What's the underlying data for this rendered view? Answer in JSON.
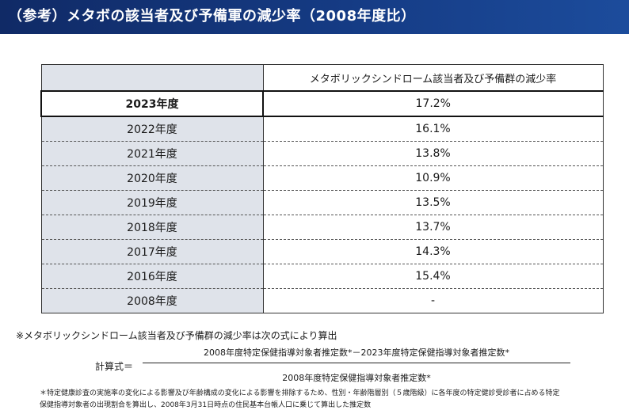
{
  "header": {
    "title": "（参考）メタボの該当者及び予備軍の減少率（2008年度比）"
  },
  "table": {
    "column_header": "メタボリックシンドローム該当者及び予備群の減少率",
    "rows": [
      {
        "year": "2023年度",
        "value": "17.2%"
      },
      {
        "year": "2022年度",
        "value": "16.1%"
      },
      {
        "year": "2021年度",
        "value": "13.8%"
      },
      {
        "year": "2020年度",
        "value": "10.9%"
      },
      {
        "year": "2019年度",
        "value": "13.5%"
      },
      {
        "year": "2018年度",
        "value": "13.7%"
      },
      {
        "year": "2017年度",
        "value": "14.3%"
      },
      {
        "year": "2016年度",
        "value": "15.4%"
      },
      {
        "year": "2008年度",
        "value": "-"
      }
    ]
  },
  "note": "※メタボリックシンドローム該当者及び予備群の減少率は次の式により算出",
  "formula": {
    "label": "計算式＝",
    "numerator": "2008年度特定保健指導対象者推定数*－2023年度特定保健指導対象者推定数*",
    "denominator": "2008年度特定保健指導対象者推定数*"
  },
  "footnote": {
    "line1": "＊特定健康診査の実施率の変化による影響及び年齢構成の変化による影響を排除するため、性別・年齢階層別（５歳階級）に各年度の特定健診受診者に占める特定",
    "line2": "保健指導対象者の出現割合を算出し、2008年3月31日時点の住民基本台帳人口に乗じて算出した推定数"
  }
}
